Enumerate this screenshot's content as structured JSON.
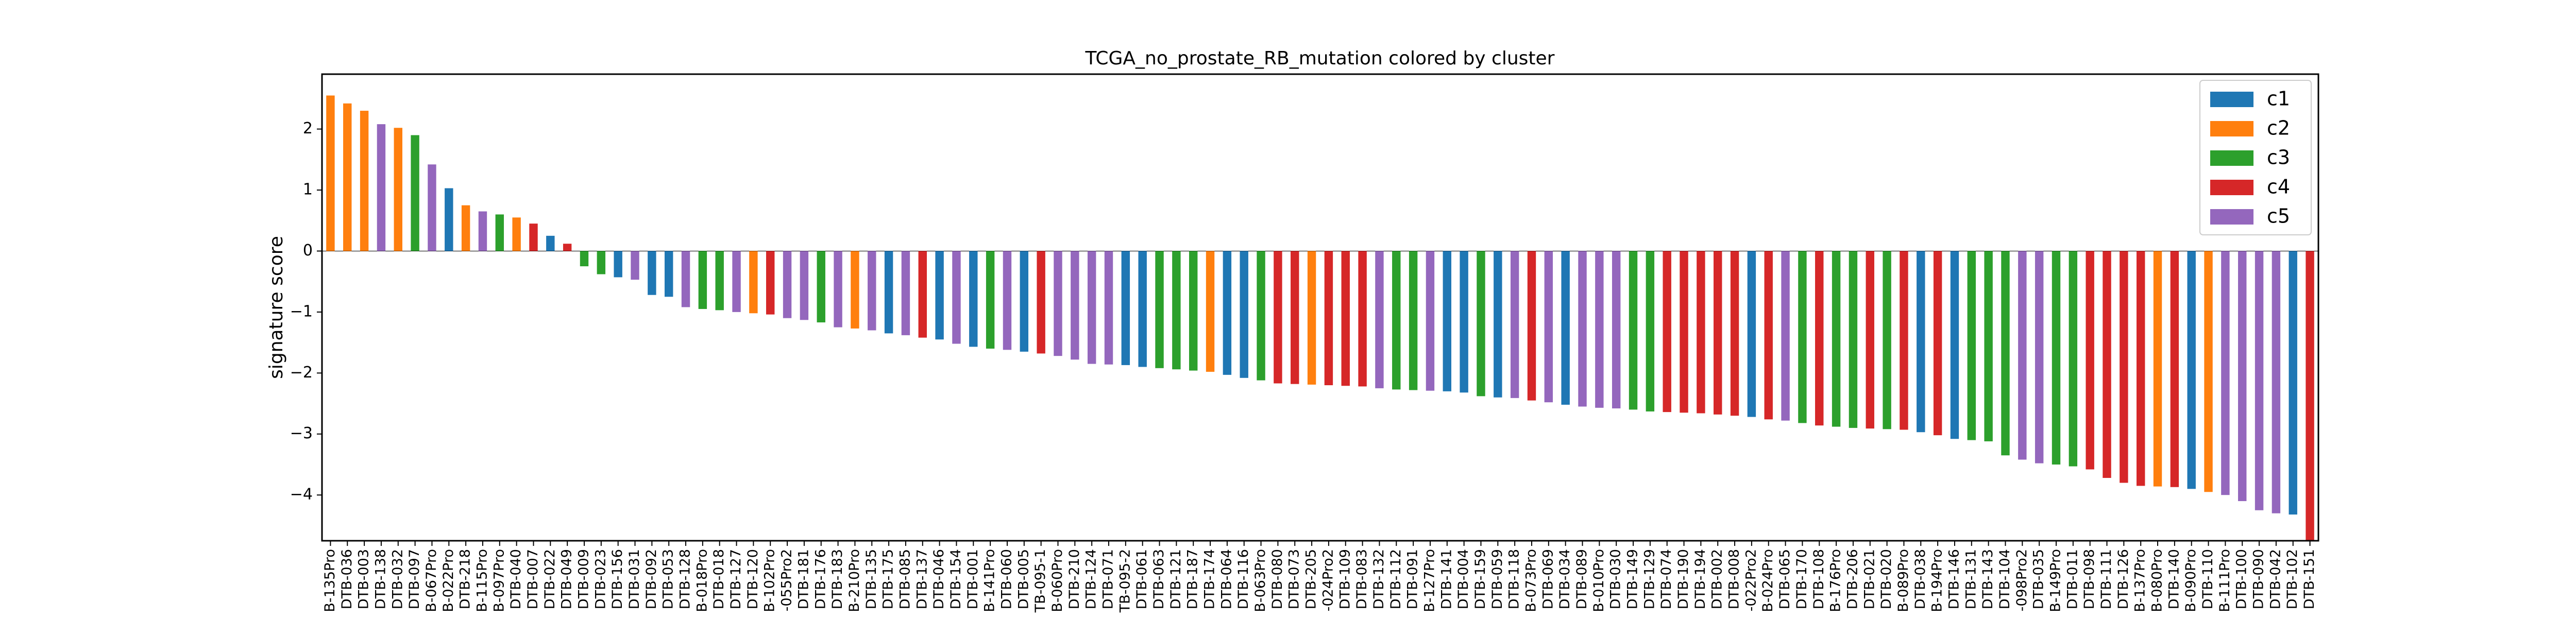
{
  "chart_data": {
    "type": "bar",
    "title": "TCGA_no_prostate_RB_mutation colored by cluster",
    "xlabel": "",
    "ylabel": "signature score",
    "ylim": [
      -4.75,
      2.9
    ],
    "yticks": [
      -4,
      -3,
      -2,
      -1,
      0,
      1,
      2
    ],
    "legend_position": "top-right",
    "legend": [
      {
        "name": "c1",
        "color": "#1f77b4"
      },
      {
        "name": "c2",
        "color": "#ff7f0e"
      },
      {
        "name": "c3",
        "color": "#2ca02c"
      },
      {
        "name": "c4",
        "color": "#d62728"
      },
      {
        "name": "c5",
        "color": "#9467bd"
      }
    ],
    "bars": [
      {
        "label": "B-135Pro",
        "value": 2.55,
        "cluster": "c2"
      },
      {
        "label": "DTB-036",
        "value": 2.42,
        "cluster": "c2"
      },
      {
        "label": "DTB-003",
        "value": 2.3,
        "cluster": "c2"
      },
      {
        "label": "DTB-138",
        "value": 2.08,
        "cluster": "c5"
      },
      {
        "label": "DTB-032",
        "value": 2.02,
        "cluster": "c2"
      },
      {
        "label": "DTB-097",
        "value": 1.9,
        "cluster": "c3"
      },
      {
        "label": "B-067Pro",
        "value": 1.42,
        "cluster": "c5"
      },
      {
        "label": "B-022Pro",
        "value": 1.03,
        "cluster": "c1"
      },
      {
        "label": "DTB-218",
        "value": 0.75,
        "cluster": "c2"
      },
      {
        "label": "B-115Pro",
        "value": 0.65,
        "cluster": "c5"
      },
      {
        "label": "B-097Pro",
        "value": 0.6,
        "cluster": "c3"
      },
      {
        "label": "DTB-040",
        "value": 0.55,
        "cluster": "c2"
      },
      {
        "label": "DTB-007",
        "value": 0.45,
        "cluster": "c4"
      },
      {
        "label": "DTB-022",
        "value": 0.25,
        "cluster": "c1"
      },
      {
        "label": "DTB-049",
        "value": 0.12,
        "cluster": "c4"
      },
      {
        "label": "DTB-009",
        "value": -0.25,
        "cluster": "c3"
      },
      {
        "label": "DTB-023",
        "value": -0.38,
        "cluster": "c3"
      },
      {
        "label": "DTB-156",
        "value": -0.43,
        "cluster": "c1"
      },
      {
        "label": "DTB-031",
        "value": -0.47,
        "cluster": "c5"
      },
      {
        "label": "DTB-092",
        "value": -0.72,
        "cluster": "c1"
      },
      {
        "label": "DTB-053",
        "value": -0.75,
        "cluster": "c1"
      },
      {
        "label": "DTB-128",
        "value": -0.92,
        "cluster": "c5"
      },
      {
        "label": "B-018Pro",
        "value": -0.95,
        "cluster": "c3"
      },
      {
        "label": "DTB-018",
        "value": -0.97,
        "cluster": "c3"
      },
      {
        "label": "DTB-127",
        "value": -1.0,
        "cluster": "c5"
      },
      {
        "label": "DTB-120",
        "value": -1.02,
        "cluster": "c2"
      },
      {
        "label": "B-102Pro",
        "value": -1.04,
        "cluster": "c4"
      },
      {
        "label": "-055Pro2",
        "value": -1.1,
        "cluster": "c5"
      },
      {
        "label": "DTB-181",
        "value": -1.13,
        "cluster": "c5"
      },
      {
        "label": "DTB-176",
        "value": -1.17,
        "cluster": "c3"
      },
      {
        "label": "DTB-183",
        "value": -1.25,
        "cluster": "c5"
      },
      {
        "label": "B-210Pro",
        "value": -1.27,
        "cluster": "c2"
      },
      {
        "label": "DTB-135",
        "value": -1.3,
        "cluster": "c5"
      },
      {
        "label": "DTB-175",
        "value": -1.35,
        "cluster": "c1"
      },
      {
        "label": "DTB-085",
        "value": -1.38,
        "cluster": "c5"
      },
      {
        "label": "DTB-137",
        "value": -1.42,
        "cluster": "c4"
      },
      {
        "label": "DTB-046",
        "value": -1.45,
        "cluster": "c1"
      },
      {
        "label": "DTB-154",
        "value": -1.52,
        "cluster": "c5"
      },
      {
        "label": "DTB-001",
        "value": -1.57,
        "cluster": "c1"
      },
      {
        "label": "B-141Pro",
        "value": -1.6,
        "cluster": "c3"
      },
      {
        "label": "DTB-060",
        "value": -1.62,
        "cluster": "c5"
      },
      {
        "label": "DTB-005",
        "value": -1.65,
        "cluster": "c1"
      },
      {
        "label": "TB-095-1",
        "value": -1.68,
        "cluster": "c4"
      },
      {
        "label": "B-060Pro",
        "value": -1.72,
        "cluster": "c5"
      },
      {
        "label": "DTB-210",
        "value": -1.78,
        "cluster": "c5"
      },
      {
        "label": "DTB-124",
        "value": -1.85,
        "cluster": "c5"
      },
      {
        "label": "DTB-071",
        "value": -1.86,
        "cluster": "c5"
      },
      {
        "label": "TB-095-2",
        "value": -1.87,
        "cluster": "c1"
      },
      {
        "label": "DTB-061",
        "value": -1.9,
        "cluster": "c1"
      },
      {
        "label": "DTB-063",
        "value": -1.92,
        "cluster": "c3"
      },
      {
        "label": "DTB-121",
        "value": -1.94,
        "cluster": "c3"
      },
      {
        "label": "DTB-187",
        "value": -1.96,
        "cluster": "c3"
      },
      {
        "label": "DTB-174",
        "value": -1.98,
        "cluster": "c2"
      },
      {
        "label": "DTB-064",
        "value": -2.03,
        "cluster": "c1"
      },
      {
        "label": "DTB-116",
        "value": -2.08,
        "cluster": "c1"
      },
      {
        "label": "B-063Pro",
        "value": -2.12,
        "cluster": "c3"
      },
      {
        "label": "DTB-080",
        "value": -2.17,
        "cluster": "c4"
      },
      {
        "label": "DTB-073",
        "value": -2.18,
        "cluster": "c4"
      },
      {
        "label": "DTB-205",
        "value": -2.19,
        "cluster": "c2"
      },
      {
        "label": "-024Pro2",
        "value": -2.2,
        "cluster": "c4"
      },
      {
        "label": "DTB-109",
        "value": -2.21,
        "cluster": "c4"
      },
      {
        "label": "DTB-083",
        "value": -2.22,
        "cluster": "c4"
      },
      {
        "label": "DTB-132",
        "value": -2.25,
        "cluster": "c5"
      },
      {
        "label": "DTB-112",
        "value": -2.27,
        "cluster": "c3"
      },
      {
        "label": "DTB-091",
        "value": -2.28,
        "cluster": "c3"
      },
      {
        "label": "B-127Pro",
        "value": -2.29,
        "cluster": "c5"
      },
      {
        "label": "DTB-141",
        "value": -2.3,
        "cluster": "c1"
      },
      {
        "label": "DTB-004",
        "value": -2.32,
        "cluster": "c1"
      },
      {
        "label": "DTB-159",
        "value": -2.38,
        "cluster": "c3"
      },
      {
        "label": "DTB-059",
        "value": -2.4,
        "cluster": "c1"
      },
      {
        "label": "DTB-118",
        "value": -2.41,
        "cluster": "c5"
      },
      {
        "label": "B-073Pro",
        "value": -2.45,
        "cluster": "c4"
      },
      {
        "label": "DTB-069",
        "value": -2.48,
        "cluster": "c5"
      },
      {
        "label": "DTB-034",
        "value": -2.52,
        "cluster": "c1"
      },
      {
        "label": "DTB-089",
        "value": -2.55,
        "cluster": "c5"
      },
      {
        "label": "B-010Pro",
        "value": -2.57,
        "cluster": "c5"
      },
      {
        "label": "DTB-030",
        "value": -2.58,
        "cluster": "c5"
      },
      {
        "label": "DTB-149",
        "value": -2.6,
        "cluster": "c3"
      },
      {
        "label": "DTB-129",
        "value": -2.63,
        "cluster": "c3"
      },
      {
        "label": "DTB-074",
        "value": -2.64,
        "cluster": "c4"
      },
      {
        "label": "DTB-190",
        "value": -2.65,
        "cluster": "c4"
      },
      {
        "label": "DTB-194",
        "value": -2.66,
        "cluster": "c4"
      },
      {
        "label": "DTB-002",
        "value": -2.68,
        "cluster": "c4"
      },
      {
        "label": "DTB-008",
        "value": -2.7,
        "cluster": "c4"
      },
      {
        "label": "-022Pro2",
        "value": -2.72,
        "cluster": "c1"
      },
      {
        "label": "B-024Pro",
        "value": -2.76,
        "cluster": "c4"
      },
      {
        "label": "DTB-065",
        "value": -2.78,
        "cluster": "c5"
      },
      {
        "label": "DTB-170",
        "value": -2.82,
        "cluster": "c3"
      },
      {
        "label": "DTB-108",
        "value": -2.86,
        "cluster": "c4"
      },
      {
        "label": "B-176Pro",
        "value": -2.88,
        "cluster": "c3"
      },
      {
        "label": "DTB-206",
        "value": -2.9,
        "cluster": "c3"
      },
      {
        "label": "DTB-021",
        "value": -2.91,
        "cluster": "c4"
      },
      {
        "label": "DTB-020",
        "value": -2.92,
        "cluster": "c3"
      },
      {
        "label": "B-089Pro",
        "value": -2.93,
        "cluster": "c4"
      },
      {
        "label": "DTB-038",
        "value": -2.97,
        "cluster": "c1"
      },
      {
        "label": "B-194Pro",
        "value": -3.02,
        "cluster": "c4"
      },
      {
        "label": "DTB-146",
        "value": -3.08,
        "cluster": "c1"
      },
      {
        "label": "DTB-131",
        "value": -3.1,
        "cluster": "c3"
      },
      {
        "label": "DTB-143",
        "value": -3.12,
        "cluster": "c3"
      },
      {
        "label": "DTB-104",
        "value": -3.35,
        "cluster": "c3"
      },
      {
        "label": "-098Pro2",
        "value": -3.42,
        "cluster": "c5"
      },
      {
        "label": "DTB-035",
        "value": -3.48,
        "cluster": "c5"
      },
      {
        "label": "B-149Pro",
        "value": -3.5,
        "cluster": "c3"
      },
      {
        "label": "DTB-011",
        "value": -3.53,
        "cluster": "c3"
      },
      {
        "label": "DTB-098",
        "value": -3.58,
        "cluster": "c4"
      },
      {
        "label": "DTB-111",
        "value": -3.72,
        "cluster": "c4"
      },
      {
        "label": "DTB-126",
        "value": -3.8,
        "cluster": "c4"
      },
      {
        "label": "B-137Pro",
        "value": -3.85,
        "cluster": "c4"
      },
      {
        "label": "B-080Pro",
        "value": -3.86,
        "cluster": "c2"
      },
      {
        "label": "DTB-140",
        "value": -3.87,
        "cluster": "c4"
      },
      {
        "label": "B-090Pro",
        "value": -3.9,
        "cluster": "c1"
      },
      {
        "label": "DTB-110",
        "value": -3.95,
        "cluster": "c2"
      },
      {
        "label": "B-111Pro",
        "value": -4.0,
        "cluster": "c5"
      },
      {
        "label": "DTB-100",
        "value": -4.1,
        "cluster": "c5"
      },
      {
        "label": "DTB-090",
        "value": -4.25,
        "cluster": "c5"
      },
      {
        "label": "DTB-042",
        "value": -4.3,
        "cluster": "c5"
      },
      {
        "label": "DTB-102",
        "value": -4.32,
        "cluster": "c1"
      },
      {
        "label": "DTB-151",
        "value": -4.75,
        "cluster": "c4"
      }
    ]
  }
}
